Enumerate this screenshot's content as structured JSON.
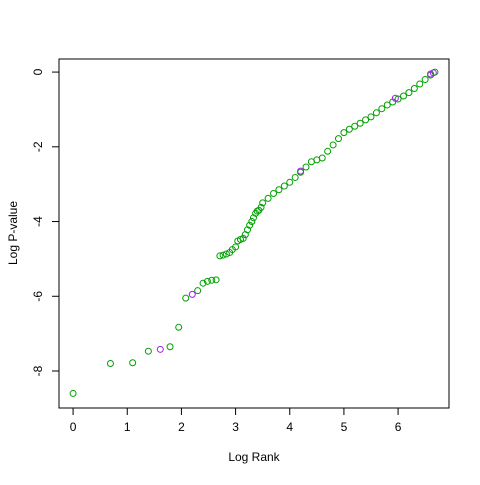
{
  "chart_data": {
    "type": "scatter",
    "x_label": "Log Rank",
    "y_label": "Log P-value",
    "xlim": [
      -0.26,
      6.94
    ],
    "ylim": [
      -8.99,
      0.35
    ],
    "xticks": [
      0,
      1,
      2,
      3,
      4,
      5,
      6
    ],
    "yticks": [
      0,
      -2,
      -4,
      -6,
      -8
    ],
    "series": [
      {
        "color": "#00a000",
        "x": [
          0,
          0.69,
          1.1,
          1.39,
          1.79,
          1.95,
          2.08,
          2.3,
          2.4,
          2.48,
          2.56,
          2.64,
          2.71,
          2.77,
          2.83,
          2.89,
          2.94,
          3.0,
          3.04,
          3.09,
          3.14,
          3.18,
          3.22,
          3.26,
          3.3,
          3.33,
          3.37,
          3.4,
          3.43,
          3.47,
          3.5,
          3.6,
          3.7,
          3.8,
          3.9,
          4.0,
          4.1,
          4.2,
          4.3,
          4.4,
          4.5,
          4.6,
          4.7,
          4.8,
          4.9,
          5.0,
          5.1,
          5.2,
          5.3,
          5.4,
          5.5,
          5.6,
          5.7,
          5.8,
          5.9,
          6.0,
          6.1,
          6.2,
          6.3,
          6.4,
          6.5,
          6.6,
          6.68
        ],
        "y": [
          -8.6,
          -7.8,
          -7.78,
          -7.47,
          -7.35,
          -6.83,
          -6.05,
          -5.85,
          -5.65,
          -5.6,
          -5.57,
          -5.56,
          -4.92,
          -4.9,
          -4.87,
          -4.83,
          -4.75,
          -4.68,
          -4.52,
          -4.48,
          -4.45,
          -4.35,
          -4.22,
          -4.1,
          -4.0,
          -3.9,
          -3.78,
          -3.72,
          -3.7,
          -3.62,
          -3.5,
          -3.38,
          -3.25,
          -3.15,
          -3.05,
          -2.95,
          -2.82,
          -2.68,
          -2.54,
          -2.4,
          -2.35,
          -2.3,
          -2.12,
          -1.95,
          -1.78,
          -1.62,
          -1.53,
          -1.45,
          -1.37,
          -1.28,
          -1.2,
          -1.09,
          -0.98,
          -0.88,
          -0.8,
          -0.72,
          -0.64,
          -0.55,
          -0.44,
          -0.32,
          -0.2,
          -0.08,
          0
        ]
      },
      {
        "color": "#a020f0",
        "x": [
          1.61,
          2.2,
          4.2,
          5.95,
          6.6,
          6.65
        ],
        "y": [
          -7.42,
          -5.95,
          -2.65,
          -0.7,
          -0.05,
          -0.02
        ]
      }
    ]
  }
}
